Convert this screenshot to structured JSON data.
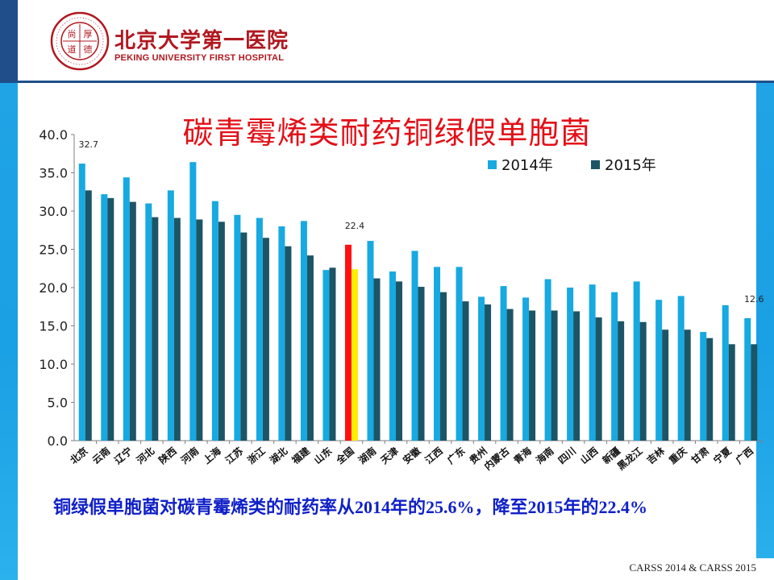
{
  "header": {
    "logo_cn": "北京大学第一医院",
    "logo_en": "PEKING UNIVERSITY FIRST HOSPITAL",
    "seal_ring_text": "北大医院 · PEKING UNIVERSITY FIRST HOSPITAL · 1915",
    "seal_center_chars": [
      "尚",
      "厚",
      "道",
      "德"
    ]
  },
  "chart_data": {
    "type": "bar",
    "title": "碳青霉烯类耐药铜绿假单胞菌",
    "ylim": [
      0,
      40
    ],
    "yticks": [
      "0.0",
      "5.0",
      "10.0",
      "15.0",
      "20.0",
      "25.0",
      "30.0",
      "35.0",
      "40.0"
    ],
    "categories": [
      "北京",
      "云南",
      "辽宁",
      "河北",
      "陕西",
      "河南",
      "上海",
      "江苏",
      "浙江",
      "湖北",
      "福建",
      "山东",
      "全国",
      "湖南",
      "天津",
      "安徽",
      "江西",
      "广东",
      "贵州",
      "内蒙古",
      "青海",
      "海南",
      "四川",
      "山西",
      "新疆",
      "黑龙江",
      "吉林",
      "重庆",
      "甘肃",
      "宁夏",
      "广西"
    ],
    "series": [
      {
        "name": "2014年",
        "color": "#17a9e1",
        "values": [
          36.2,
          32.2,
          34.4,
          31.0,
          32.7,
          36.4,
          31.3,
          29.5,
          29.1,
          28.0,
          28.7,
          22.3,
          25.6,
          26.1,
          22.1,
          24.8,
          22.7,
          22.7,
          18.8,
          20.2,
          18.7,
          21.1,
          20.0,
          20.4,
          19.4,
          20.8,
          18.4,
          18.9,
          14.2,
          17.7,
          16.0
        ]
      },
      {
        "name": "2015年",
        "color": "#1c5566",
        "values": [
          32.7,
          31.7,
          31.2,
          29.2,
          29.1,
          28.9,
          28.6,
          27.2,
          26.5,
          25.4,
          24.2,
          22.6,
          22.4,
          21.2,
          20.8,
          20.1,
          19.4,
          18.2,
          17.8,
          17.2,
          17.0,
          17.0,
          16.9,
          16.1,
          15.6,
          15.5,
          14.5,
          14.5,
          13.4,
          12.6,
          12.6
        ]
      }
    ],
    "highlight": {
      "category": "全国",
      "colors": [
        "#ff1010",
        "#ffee00"
      ]
    },
    "annotations": [
      {
        "category": "北京",
        "series": 1,
        "text": "32.7"
      },
      {
        "category": "全国",
        "series": 1,
        "text": "22.4"
      },
      {
        "category": "广西",
        "series": 1,
        "text": "12.6"
      }
    ],
    "legend_position": "top-right",
    "grid": false
  },
  "caption": "铜绿假单胞菌对碳青霉烯类的耐药率从2014年的25.6%，降至2015年的22.4%",
  "source": "CARSS 2014 & CARSS 2015"
}
